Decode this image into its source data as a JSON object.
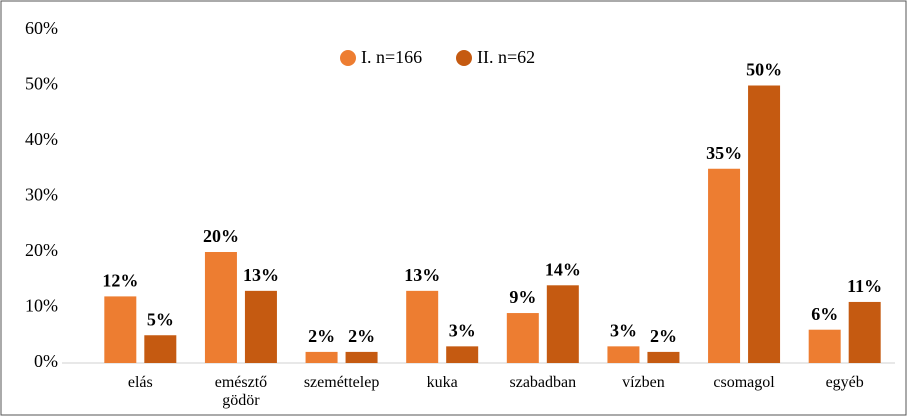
{
  "chart_data": {
    "type": "bar",
    "categories": [
      "elás",
      "emésztő gödör",
      "szeméttelep",
      "kuka",
      "szabadban",
      "vízben",
      "csomagol",
      "egyéb"
    ],
    "series": [
      {
        "name": "I. n=166",
        "color": "#ed7d31",
        "values": [
          12,
          20,
          2,
          13,
          9,
          3,
          35,
          6
        ],
        "value_labels": [
          "12%",
          "20%",
          "2%",
          "13%",
          "9%",
          "3%",
          "35%",
          "6%"
        ]
      },
      {
        "name": "II. n=62",
        "color": "#c55a11",
        "values": [
          5,
          13,
          2,
          3,
          14,
          2,
          50,
          11
        ],
        "value_labels": [
          "5%",
          "13%",
          "2%",
          "3%",
          "14%",
          "2%",
          "50%",
          "11%"
        ]
      }
    ],
    "ylim": [
      0,
      60
    ],
    "yticks": [
      {
        "value": 0,
        "label": "0%"
      },
      {
        "value": 10,
        "label": "10%"
      },
      {
        "value": 20,
        "label": "20%"
      },
      {
        "value": 30,
        "label": "30%"
      },
      {
        "value": 40,
        "label": "40%"
      },
      {
        "value": 50,
        "label": "50%"
      },
      {
        "value": 60,
        "label": "60%"
      }
    ],
    "grid": false,
    "legend": "top"
  }
}
